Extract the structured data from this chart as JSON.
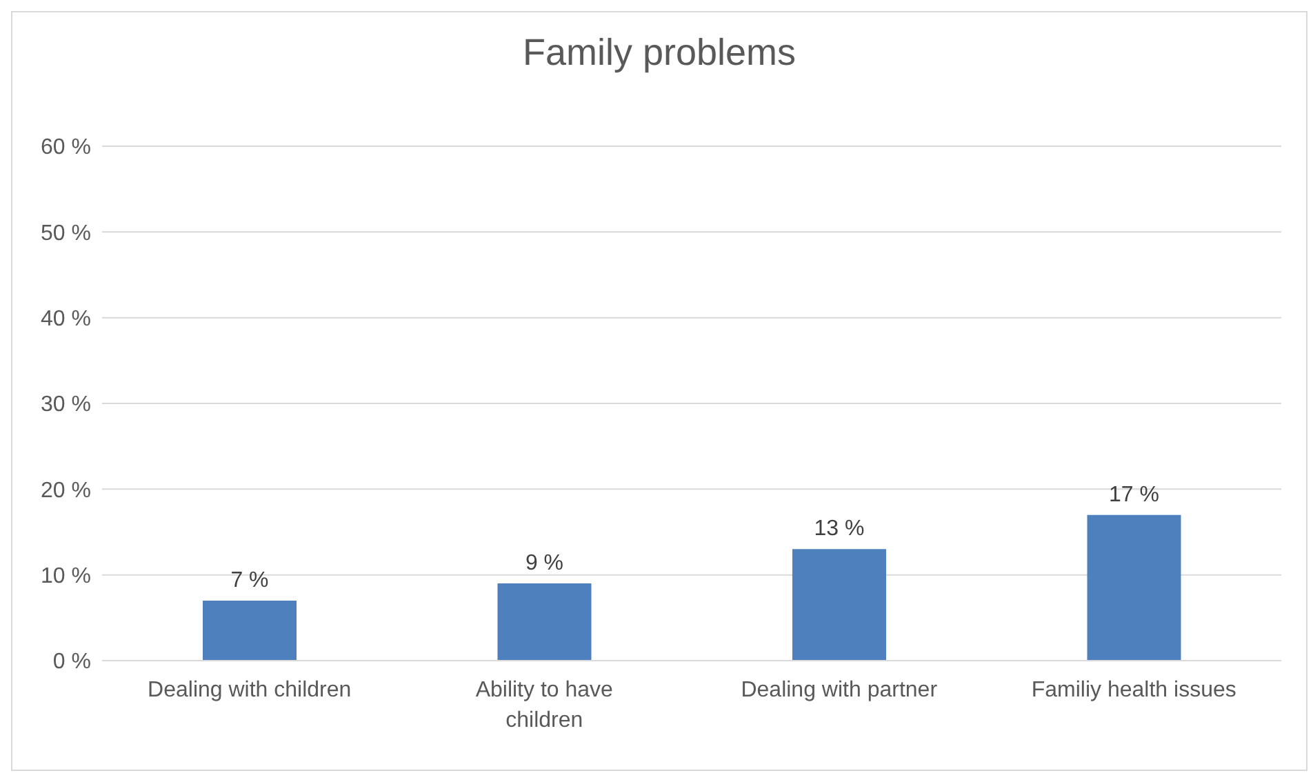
{
  "chart_data": {
    "type": "bar",
    "title": "Family problems",
    "categories": [
      "Dealing with children",
      "Ability to have children",
      "Dealing with partner",
      "Familiy health issues"
    ],
    "values": [
      7,
      9,
      13,
      17
    ],
    "value_labels": [
      "7 %",
      "9 %",
      "13 %",
      "17 %"
    ],
    "color": "#4e80bd",
    "ylim": [
      0,
      60
    ],
    "yticks": [
      {
        "value": 0,
        "label": "0 %"
      },
      {
        "value": 10,
        "label": "10 %"
      },
      {
        "value": 20,
        "label": "20 %"
      },
      {
        "value": 30,
        "label": "30 %"
      },
      {
        "value": 40,
        "label": "40 %"
      },
      {
        "value": 50,
        "label": "50 %"
      },
      {
        "value": 60,
        "label": "60 %"
      }
    ],
    "grid": "y",
    "legend": false
  }
}
